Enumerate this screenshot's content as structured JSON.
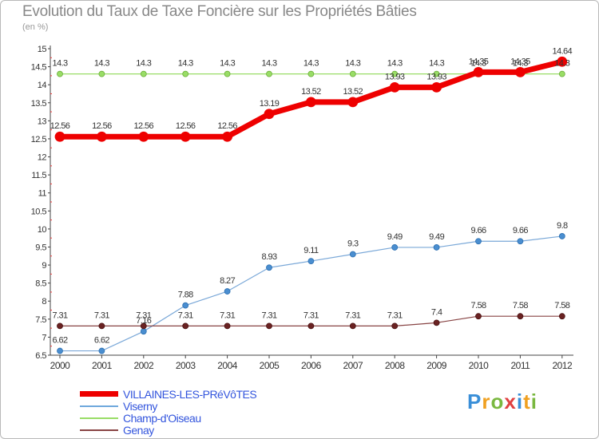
{
  "chart_data": {
    "type": "line",
    "title": "Evolution du Taux de Taxe Foncière sur les Propriétés Bâties",
    "subtitle": "(en %)",
    "categories": [
      "2000",
      "2001",
      "2002",
      "2003",
      "2004",
      "2005",
      "2006",
      "2007",
      "2008",
      "2009",
      "2010",
      "2011",
      "2012"
    ],
    "ylim": [
      6.5,
      15
    ],
    "yticks": [
      "6.5",
      "7",
      "7.5",
      "8",
      "8.5",
      "9",
      "9.5",
      "10",
      "10.5",
      "11",
      "11.5",
      "12",
      "12.5",
      "13",
      "13.5",
      "14",
      "14.5",
      "15"
    ],
    "grid": false,
    "legend_position": "bottom-left",
    "series": [
      {
        "name": "VILLAINES-LES-PRéVôTES",
        "color": "#ee0000",
        "values": [
          12.56,
          12.56,
          12.56,
          12.56,
          12.56,
          13.19,
          13.52,
          13.52,
          13.93,
          13.93,
          14.35,
          14.35,
          14.64
        ],
        "labels": [
          "12.56",
          "12.56",
          "12.56",
          "12.56",
          "12.56",
          "13.19",
          "13.52",
          "13.52",
          "13.93",
          "13.93",
          "14.35",
          "14.35",
          "14.64"
        ]
      },
      {
        "name": "Viserny",
        "color": "#6fa8dc",
        "values": [
          6.62,
          6.62,
          7.16,
          7.88,
          8.27,
          8.93,
          9.11,
          9.3,
          9.49,
          9.49,
          9.66,
          9.66,
          9.8
        ],
        "labels": [
          "6.62",
          "6.62",
          "7.16",
          "7.88",
          "8.27",
          "8.93",
          "9.11",
          "9.3",
          "9.49",
          "9.49",
          "9.66",
          "9.66",
          "9.8"
        ]
      },
      {
        "name": "Champ-d'Oiseau",
        "color": "#99dd66",
        "values": [
          14.3,
          14.3,
          14.3,
          14.3,
          14.3,
          14.3,
          14.3,
          14.3,
          14.3,
          14.3,
          14.3,
          14.3,
          14.3
        ],
        "labels": [
          "14.3",
          "14.3",
          "14.3",
          "14.3",
          "14.3",
          "14.3",
          "14.3",
          "14.3",
          "14.3",
          "14.3",
          "14.3",
          "14.3",
          "14.3"
        ]
      },
      {
        "name": "Genay",
        "color": "#884444",
        "values": [
          7.31,
          7.31,
          7.31,
          7.31,
          7.31,
          7.31,
          7.31,
          7.31,
          7.31,
          7.4,
          7.58,
          7.58,
          7.58
        ],
        "labels": [
          "7.31",
          "7.31",
          "7.31",
          "7.31",
          "7.31",
          "7.31",
          "7.31",
          "7.31",
          "7.31",
          "7.4",
          "7.58",
          "7.58",
          "7.58"
        ]
      }
    ]
  },
  "logo": {
    "letters": [
      "P",
      "r",
      "o",
      "x",
      "i",
      "t",
      "i"
    ],
    "colors": [
      "#3a8fd8",
      "#f0a020",
      "#7ab840",
      "#e04040",
      "#3a8fd8",
      "#f0a020",
      "#7ab840"
    ]
  }
}
